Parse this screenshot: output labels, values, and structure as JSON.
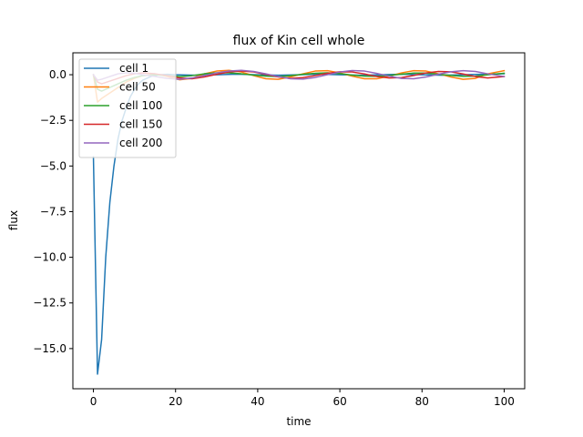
{
  "chart_data": {
    "type": "line",
    "title": "flux of Kin cell whole",
    "xlabel": "time",
    "ylabel": "flux",
    "xlim": [
      -5,
      105
    ],
    "ylim": [
      -17.2,
      1.2
    ],
    "xticks": [
      0,
      20,
      40,
      60,
      80,
      100
    ],
    "xtick_labels": [
      "0",
      "20",
      "40",
      "60",
      "80",
      "100"
    ],
    "yticks": [
      0.0,
      -2.5,
      -5.0,
      -7.5,
      -10.0,
      -12.5,
      -15.0
    ],
    "ytick_labels": [
      "0.0",
      "−2.5",
      "−5.0",
      "−7.5",
      "−10.0",
      "−12.5",
      "−15.0"
    ],
    "grid": false,
    "legend_position": "upper-left",
    "series": [
      {
        "name": "cell 1",
        "color": "#1f77b4",
        "x": [
          0,
          1,
          2,
          3,
          4,
          5,
          6,
          7,
          8,
          9,
          10,
          11,
          12,
          14,
          16,
          18,
          20,
          25,
          30,
          35,
          40,
          45,
          50,
          55,
          60,
          65,
          70,
          75,
          80,
          85,
          90,
          95,
          100
        ],
        "y": [
          -4.5,
          -16.4,
          -14.5,
          -10.0,
          -7.0,
          -5.0,
          -3.5,
          -2.5,
          -1.8,
          -1.2,
          -0.8,
          -0.5,
          -0.3,
          -0.1,
          0.0,
          0.02,
          0.0,
          -0.03,
          0.0,
          0.03,
          0.0,
          -0.03,
          0.0,
          0.03,
          0.0,
          -0.03,
          0.0,
          0.03,
          0.0,
          -0.03,
          0.0,
          0.03,
          0.05
        ]
      },
      {
        "name": "cell 50",
        "color": "#ff7f0e",
        "x": [
          0,
          1,
          2,
          4,
          6,
          8,
          10,
          12,
          15,
          18,
          21,
          24,
          27,
          30,
          33,
          36,
          39,
          42,
          45,
          48,
          51,
          54,
          57,
          60,
          63,
          66,
          69,
          72,
          75,
          78,
          81,
          84,
          87,
          90,
          93,
          96,
          100
        ],
        "y": [
          0.0,
          -1.5,
          -1.3,
          -1.0,
          -0.7,
          -0.4,
          -0.2,
          -0.05,
          0.05,
          -0.1,
          -0.28,
          -0.2,
          0.05,
          0.2,
          0.24,
          0.15,
          -0.05,
          -0.22,
          -0.25,
          -0.12,
          0.05,
          0.2,
          0.22,
          0.1,
          -0.08,
          -0.22,
          -0.22,
          -0.08,
          0.1,
          0.22,
          0.2,
          0.05,
          -0.12,
          -0.25,
          -0.2,
          0.05,
          0.22
        ]
      },
      {
        "name": "cell 100",
        "color": "#2ca02c",
        "x": [
          0,
          1,
          2,
          4,
          6,
          8,
          10,
          12,
          15,
          18,
          21,
          24,
          27,
          30,
          33,
          36,
          39,
          42,
          45,
          48,
          51,
          54,
          57,
          60,
          63,
          66,
          69,
          72,
          75,
          78,
          81,
          84,
          87,
          90,
          93,
          96,
          100
        ],
        "y": [
          0.0,
          -0.8,
          -0.9,
          -0.7,
          -0.5,
          -0.3,
          -0.15,
          -0.05,
          0.0,
          -0.05,
          -0.1,
          -0.05,
          0.05,
          0.1,
          0.1,
          0.05,
          -0.02,
          -0.08,
          -0.1,
          -0.05,
          0.02,
          0.08,
          0.1,
          0.06,
          -0.02,
          -0.08,
          -0.09,
          -0.04,
          0.03,
          0.09,
          0.09,
          0.03,
          -0.04,
          -0.09,
          -0.08,
          0.0,
          0.08
        ]
      },
      {
        "name": "cell 150",
        "color": "#d62728",
        "x": [
          0,
          1,
          2,
          4,
          6,
          8,
          10,
          12,
          15,
          18,
          21,
          24,
          27,
          30,
          33,
          36,
          39,
          42,
          45,
          48,
          51,
          54,
          57,
          60,
          63,
          66,
          69,
          72,
          75,
          78,
          81,
          84,
          87,
          90,
          93,
          96,
          100
        ],
        "y": [
          0.0,
          -0.4,
          -0.5,
          -0.35,
          -0.2,
          -0.05,
          0.05,
          0.1,
          0.05,
          -0.05,
          -0.18,
          -0.22,
          -0.12,
          0.02,
          0.15,
          0.2,
          0.15,
          0.02,
          -0.12,
          -0.2,
          -0.16,
          -0.05,
          0.08,
          0.16,
          0.15,
          0.04,
          -0.1,
          -0.18,
          -0.16,
          -0.04,
          0.1,
          0.18,
          0.16,
          0.04,
          -0.1,
          -0.18,
          -0.1
        ]
      },
      {
        "name": "cell 200",
        "color": "#9467bd",
        "x": [
          0,
          1,
          2,
          4,
          6,
          8,
          10,
          12,
          15,
          18,
          21,
          24,
          27,
          30,
          33,
          36,
          39,
          42,
          45,
          48,
          51,
          54,
          57,
          60,
          63,
          66,
          69,
          72,
          75,
          78,
          81,
          84,
          87,
          90,
          93,
          96,
          100
        ],
        "y": [
          0.0,
          -0.3,
          -0.25,
          -0.1,
          0.05,
          0.1,
          0.08,
          0.0,
          -0.1,
          -0.2,
          -0.25,
          -0.18,
          -0.05,
          0.1,
          0.2,
          0.24,
          0.18,
          0.05,
          -0.1,
          -0.22,
          -0.24,
          -0.15,
          0.0,
          0.15,
          0.23,
          0.2,
          0.07,
          -0.08,
          -0.2,
          -0.22,
          -0.12,
          0.03,
          0.16,
          0.22,
          0.18,
          0.05,
          -0.1
        ]
      }
    ]
  }
}
